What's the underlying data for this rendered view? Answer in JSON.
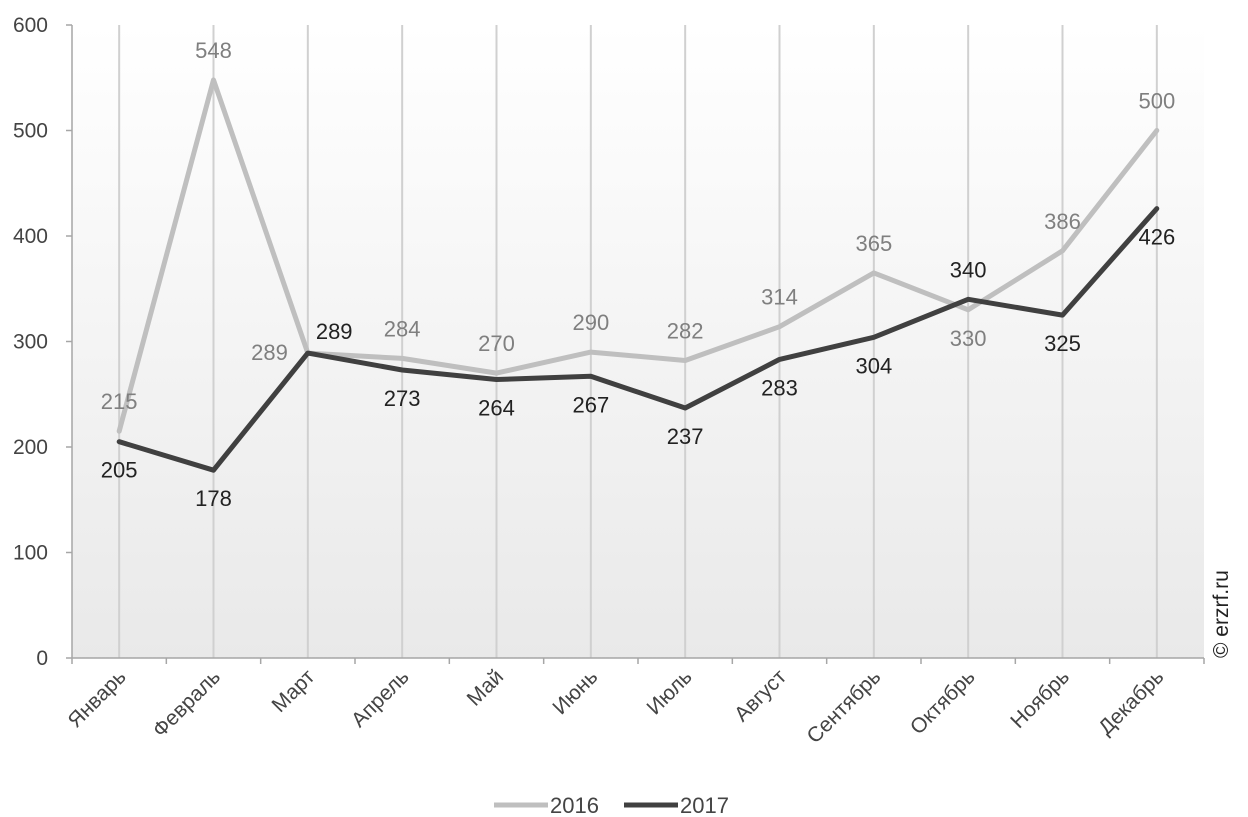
{
  "chart_data": {
    "type": "line",
    "categories": [
      "Январь",
      "Февраль",
      "Март",
      "Апрель",
      "Май",
      "Июнь",
      "Июль",
      "Август",
      "Сентябрь",
      "Октябрь",
      "Ноябрь",
      "Декабрь"
    ],
    "series": [
      {
        "name": "2016",
        "color": "#bfbfbf",
        "values": [
          215,
          548,
          289,
          284,
          270,
          290,
          282,
          314,
          365,
          330,
          386,
          500
        ]
      },
      {
        "name": "2017",
        "color": "#404040",
        "values": [
          205,
          178,
          289,
          273,
          264,
          267,
          237,
          283,
          304,
          340,
          325,
          426
        ]
      }
    ],
    "yticks": [
      0,
      100,
      200,
      300,
      400,
      500,
      600
    ],
    "ylim": [
      0,
      600
    ],
    "grid": "vertical",
    "legend_position": "bottom"
  },
  "watermark": "© erzrf.ru"
}
